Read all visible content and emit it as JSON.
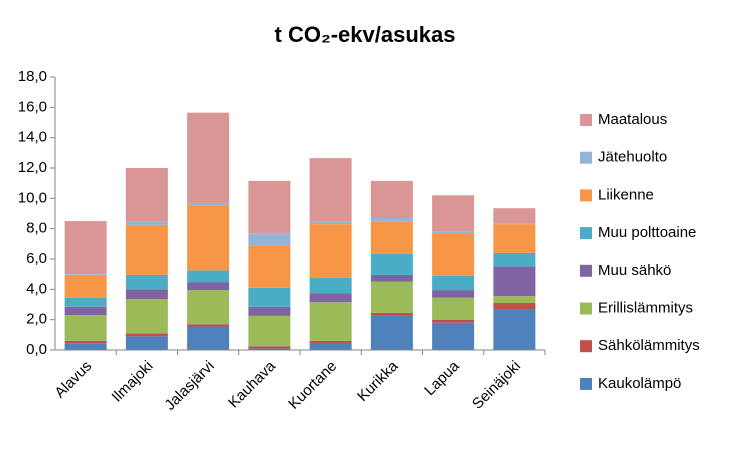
{
  "chart_data": {
    "type": "stacked-bar",
    "title": "t CO₂-ekv/asukas",
    "categories": [
      "Alavus",
      "Ilmajoki",
      "Jalasjärvi",
      "Kauhava",
      "Kuortane",
      "Kurikka",
      "Lapua",
      "Seinäjoki"
    ],
    "series": [
      {
        "name": "Kaukolämpö",
        "color": "#4f81bd",
        "values": [
          0.45,
          0.9,
          1.55,
          0.1,
          0.4,
          2.25,
          1.8,
          2.7
        ]
      },
      {
        "name": "Sähkölämmitys",
        "color": "#c0504d",
        "values": [
          0.15,
          0.2,
          0.15,
          0.15,
          0.2,
          0.2,
          0.2,
          0.4
        ]
      },
      {
        "name": "Erillislämmitys",
        "color": "#9bbb59",
        "values": [
          1.7,
          2.25,
          2.25,
          2.0,
          2.55,
          2.05,
          1.45,
          0.45
        ]
      },
      {
        "name": "Muu sähkö",
        "color": "#8064a2",
        "values": [
          0.55,
          0.65,
          0.5,
          0.6,
          0.6,
          0.45,
          0.5,
          1.95
        ]
      },
      {
        "name": "Muu polttoaine",
        "color": "#4bacc6",
        "values": [
          0.6,
          0.95,
          0.8,
          1.25,
          1.0,
          1.4,
          0.95,
          0.9
        ]
      },
      {
        "name": "Liikenne",
        "color": "#f79646",
        "values": [
          1.5,
          3.3,
          4.3,
          2.8,
          3.55,
          2.1,
          2.75,
          1.9
        ]
      },
      {
        "name": "Jätehuolto",
        "color": "#95b3d7",
        "values": [
          0.05,
          0.2,
          0.15,
          0.8,
          0.15,
          0.25,
          0.15,
          0.05
        ]
      },
      {
        "name": "Maatalous",
        "color": "#d99694",
        "values": [
          3.5,
          3.55,
          5.95,
          3.45,
          4.2,
          2.45,
          2.4,
          1.0
        ]
      }
    ],
    "ylim": [
      0,
      18
    ],
    "yticks": [
      {
        "value": 0,
        "label": "0,0"
      },
      {
        "value": 2,
        "label": "2,0"
      },
      {
        "value": 4,
        "label": "4,0"
      },
      {
        "value": 6,
        "label": "6,0"
      },
      {
        "value": 8,
        "label": "8,0"
      },
      {
        "value": 10,
        "label": "10,0"
      },
      {
        "value": 12,
        "label": "12,0"
      },
      {
        "value": 14,
        "label": "14,0"
      },
      {
        "value": 16,
        "label": "16,0"
      },
      {
        "value": 18,
        "label": "18,0"
      }
    ],
    "grid": false,
    "legend": "right"
  }
}
